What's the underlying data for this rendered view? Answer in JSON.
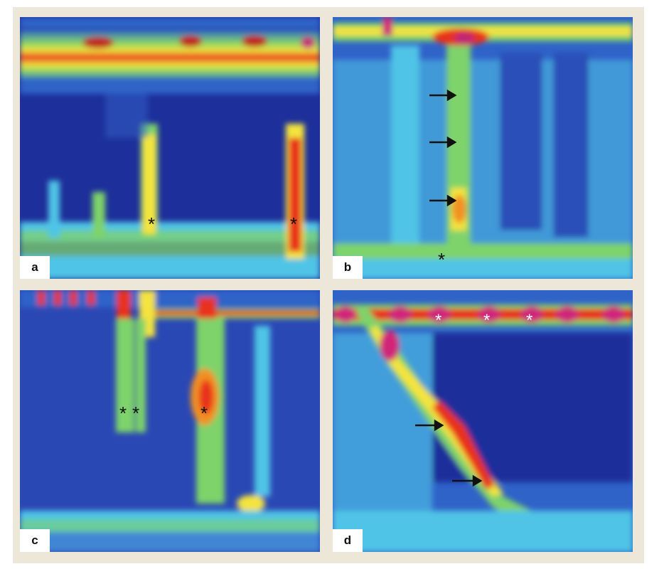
{
  "figure": {
    "panels": [
      {
        "id": "a",
        "label": "a",
        "annotations": {
          "asterisks": 2,
          "arrows": 0
        }
      },
      {
        "id": "b",
        "label": "b",
        "annotations": {
          "asterisks": 1,
          "arrows": 3
        }
      },
      {
        "id": "c",
        "label": "c",
        "annotations": {
          "asterisks": 3,
          "arrows": 0
        }
      },
      {
        "id": "d",
        "label": "d",
        "annotations": {
          "asterisks": 3,
          "arrows": 2
        }
      }
    ],
    "colors": {
      "background_blue": "#1d2f9a",
      "mid_blue": "#2f63c8",
      "cyan": "#4fc4e6",
      "green": "#7ed36a",
      "yellow": "#f4e43c",
      "red": "#e8301c",
      "magenta": "#d0287a",
      "frame": "#ede7d9"
    }
  }
}
